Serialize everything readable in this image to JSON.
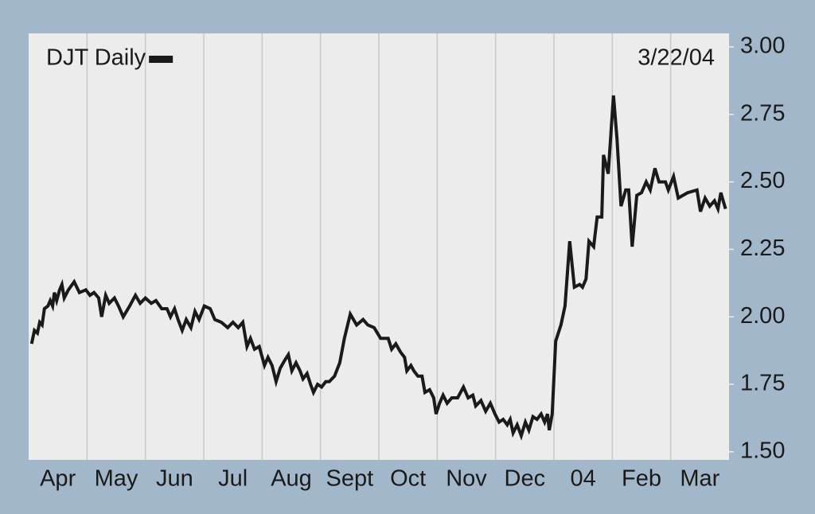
{
  "chart_data": {
    "type": "line",
    "annotation": "3/22/04",
    "categories": [
      "Apr",
      "May",
      "Jun",
      "Jul",
      "Aug",
      "Sept",
      "Oct",
      "Nov",
      "Dec",
      "04",
      "Feb",
      "Mar"
    ],
    "xlim": [
      0,
      12
    ],
    "ylim": [
      1.47,
      3.05
    ],
    "yticks": [
      {
        "value": 1.5,
        "label": "1.50"
      },
      {
        "value": 1.75,
        "label": "1.75"
      },
      {
        "value": 2,
        "label": "2.00"
      },
      {
        "value": 2.25,
        "label": "2.25"
      },
      {
        "value": 2.5,
        "label": "2.50"
      },
      {
        "value": 2.75,
        "label": "2.75"
      },
      {
        "value": 3,
        "label": "3.00"
      }
    ],
    "grid": true,
    "legend": "top-left",
    "series": [
      {
        "name": "DJT Daily",
        "color": "#1a1a1a",
        "x": [
          0.05,
          0.1,
          0.15,
          0.19,
          0.23,
          0.27,
          0.33,
          0.37,
          0.41,
          0.44,
          0.48,
          0.53,
          0.57,
          0.61,
          0.68,
          0.78,
          0.87,
          0.98,
          1.05,
          1.12,
          1.2,
          1.25,
          1.32,
          1.38,
          1.47,
          1.54,
          1.62,
          1.73,
          1.83,
          1.91,
          2.0,
          2.1,
          2.18,
          2.28,
          2.37,
          2.43,
          2.5,
          2.56,
          2.63,
          2.7,
          2.78,
          2.85,
          2.92,
          3.01,
          3.11,
          3.19,
          3.3,
          3.41,
          3.5,
          3.59,
          3.67,
          3.74,
          3.8,
          3.87,
          3.95,
          4.04,
          4.1,
          4.17,
          4.24,
          4.31,
          4.39,
          4.45,
          4.51,
          4.58,
          4.65,
          4.7,
          4.77,
          4.83,
          4.88,
          4.95,
          5.02,
          5.09,
          5.15,
          5.24,
          5.33,
          5.41,
          5.51,
          5.62,
          5.73,
          5.81,
          5.92,
          6.03,
          6.16,
          6.22,
          6.29,
          6.37,
          6.44,
          6.48,
          6.55,
          6.6,
          6.67,
          6.74,
          6.79,
          6.87,
          6.94,
          6.98,
          7.04,
          7.1,
          7.17,
          7.25,
          7.35,
          7.45,
          7.53,
          7.61,
          7.66,
          7.75,
          7.83,
          7.91,
          7.99,
          8.06,
          8.13,
          8.2,
          8.25,
          8.3,
          8.37,
          8.44,
          8.51,
          8.57,
          8.64,
          8.71,
          8.78,
          8.84,
          8.89,
          8.92,
          8.97,
          9.03,
          9.12,
          9.19,
          9.27,
          9.35,
          9.44,
          9.49,
          9.55,
          9.6,
          9.68,
          9.74,
          9.82,
          9.85,
          9.93,
          10.02,
          10.08,
          10.15,
          10.23,
          10.28,
          10.34,
          10.42,
          10.5,
          10.58,
          10.65,
          10.73,
          10.8,
          10.91,
          10.96,
          11.05,
          11.13,
          11.21,
          11.29,
          11.45,
          11.51,
          11.59,
          11.67,
          11.75,
          11.81,
          11.86,
          11.94
        ],
        "values": [
          1.9,
          1.95,
          1.94,
          1.98,
          1.97,
          2.03,
          2.04,
          2.06,
          2.04,
          2.09,
          2.06,
          2.1,
          2.12,
          2.07,
          2.1,
          2.13,
          2.09,
          2.1,
          2.08,
          2.09,
          2.07,
          2.0,
          2.08,
          2.05,
          2.07,
          2.04,
          2.0,
          2.04,
          2.08,
          2.05,
          2.07,
          2.05,
          2.06,
          2.03,
          2.03,
          2.0,
          2.03,
          1.99,
          1.95,
          1.99,
          1.96,
          2.02,
          1.99,
          2.04,
          2.03,
          1.99,
          1.98,
          1.96,
          1.98,
          1.96,
          1.98,
          1.89,
          1.92,
          1.88,
          1.89,
          1.82,
          1.85,
          1.82,
          1.76,
          1.81,
          1.84,
          1.86,
          1.8,
          1.83,
          1.8,
          1.77,
          1.79,
          1.75,
          1.72,
          1.75,
          1.74,
          1.76,
          1.76,
          1.78,
          1.83,
          1.92,
          2.01,
          1.97,
          1.99,
          1.97,
          1.96,
          1.92,
          1.92,
          1.88,
          1.9,
          1.87,
          1.85,
          1.8,
          1.82,
          1.8,
          1.78,
          1.78,
          1.72,
          1.73,
          1.7,
          1.64,
          1.68,
          1.71,
          1.68,
          1.7,
          1.7,
          1.74,
          1.7,
          1.71,
          1.67,
          1.69,
          1.65,
          1.68,
          1.64,
          1.61,
          1.62,
          1.6,
          1.62,
          1.57,
          1.6,
          1.56,
          1.61,
          1.58,
          1.63,
          1.62,
          1.64,
          1.61,
          1.64,
          1.58,
          1.64,
          1.91,
          1.97,
          2.04,
          2.28,
          2.11,
          2.12,
          2.11,
          2.14,
          2.28,
          2.26,
          2.37,
          2.37,
          2.6,
          2.53,
          2.82,
          2.66,
          2.41,
          2.47,
          2.47,
          2.26,
          2.45,
          2.46,
          2.5,
          2.47,
          2.55,
          2.5,
          2.5,
          2.47,
          2.52,
          2.44,
          2.45,
          2.46,
          2.47,
          2.39,
          2.44,
          2.41,
          2.43,
          2.4,
          2.46,
          2.4
        ]
      }
    ]
  }
}
